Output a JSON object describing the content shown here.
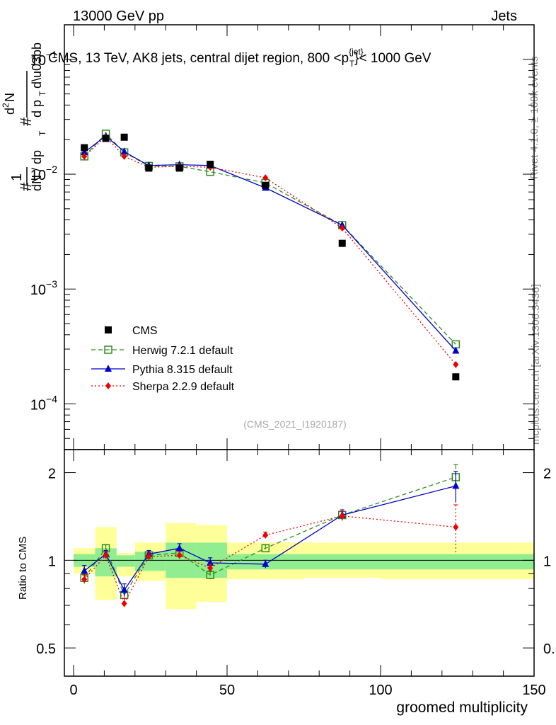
{
  "header": {
    "left": "13000 GeV pp",
    "right": "Jets"
  },
  "side": {
    "rivet": "Rivet 4.1.0, ≥ 100k events",
    "mcplots": "mcplots.cern.ch [arXiv:1306.3436]"
  },
  "chart_data": {
    "type": "line",
    "title": "CMS, 13 TeV, AK8 jets, central dijet region, 800 <p_T^{jet}< 1000 GeV",
    "title_parts": {
      "prefix": "CMS, 13 TeV, AK8 jets, central dijet region, 800 <p",
      "sub": "T",
      "sup": "{jet}",
      "suffix": "}< 1000 GeV"
    },
    "analysis_tag": "(CMS_2021_I1920187)",
    "xlabel": "groomed multiplicity",
    "ylabel_main": "1/dN/dp_T  d²N/dp_T dλ",
    "ylabel_ratio": "Ratio to CMS",
    "xlim": [
      -3,
      150
    ],
    "ylim_main": [
      4e-05,
      0.2
    ],
    "ylim_ratio": [
      0.4,
      2.4
    ],
    "x_ticks": [
      0,
      50,
      100,
      150
    ],
    "y_ticks_main": [
      {
        "value": 0.0001,
        "base": "10",
        "exp": "−4"
      },
      {
        "value": 0.001,
        "base": "10",
        "exp": "−3"
      },
      {
        "value": 0.01,
        "base": "10",
        "exp": "−2"
      },
      {
        "value": 0.1,
        "base": "10",
        "exp": "−1"
      }
    ],
    "y_ticks_ratio": [
      {
        "value": 0.5,
        "label": "0.5"
      },
      {
        "value": 1,
        "label": "1"
      },
      {
        "value": 2,
        "label": "2"
      }
    ],
    "x": [
      3.5,
      10.5,
      16.5,
      24.5,
      34.5,
      44.5,
      62.5,
      87.5,
      124.5
    ],
    "bin_edges": [
      0,
      7,
      14,
      20,
      30,
      40,
      50,
      75,
      100,
      150
    ],
    "data": {
      "name": "CMS",
      "values": [
        0.017,
        0.0205,
        0.021,
        0.0113,
        0.0113,
        0.0122,
        0.008,
        0.0025,
        0.000172
      ]
    },
    "series": [
      {
        "name": "Herwig 7.2.1 default",
        "color": "#2e8b1e",
        "values": [
          0.0143,
          0.0225,
          0.0155,
          0.0118,
          0.0117,
          0.0105,
          0.0084,
          0.0036,
          0.00033
        ],
        "ratio": [
          0.87,
          1.1,
          0.76,
          1.04,
          1.06,
          0.89,
          1.1,
          1.43,
          1.93
        ],
        "ratio_err": [
          0.03,
          0.03,
          0.03,
          0.03,
          0.03,
          0.03,
          0.03,
          0.06,
          0.2
        ]
      },
      {
        "name": "Pythia 8.315 default",
        "color": "#0000cc",
        "values": [
          0.0155,
          0.0215,
          0.0157,
          0.0119,
          0.0121,
          0.0119,
          0.0076,
          0.0036,
          0.00029
        ],
        "ratio": [
          0.92,
          1.05,
          0.79,
          1.05,
          1.1,
          0.98,
          0.97,
          1.43,
          1.8
        ],
        "ratio_err": [
          0.04,
          0.03,
          0.04,
          0.03,
          0.04,
          0.04,
          0.03,
          0.06,
          0.22
        ]
      },
      {
        "name": "Sherpa 2.2.9 default",
        "color": "#ee0000",
        "values": [
          0.0143,
          0.0212,
          0.0143,
          0.0115,
          0.0117,
          0.0115,
          0.0093,
          0.0034,
          0.00022
        ],
        "ratio": [
          0.86,
          1.04,
          0.71,
          1.03,
          1.04,
          0.94,
          1.22,
          1.42,
          1.3
        ],
        "ratio_err": [
          0.03,
          0.03,
          0.03,
          0.03,
          0.03,
          0.03,
          0.03,
          0.05,
          0.25
        ]
      }
    ],
    "band_green": [
      [
        0.95,
        1.05
      ],
      [
        0.88,
        1.1
      ],
      [
        0.95,
        1.04
      ],
      [
        0.92,
        1.07
      ],
      [
        0.87,
        1.15
      ],
      [
        0.87,
        1.15
      ],
      [
        0.93,
        1.05
      ],
      [
        0.93,
        1.05
      ],
      [
        0.93,
        1.05
      ]
    ],
    "band_yellow": [
      [
        0.9,
        1.1
      ],
      [
        0.73,
        1.3
      ],
      [
        0.88,
        1.06
      ],
      [
        0.85,
        1.15
      ],
      [
        0.68,
        1.34
      ],
      [
        0.72,
        1.32
      ],
      [
        0.86,
        1.15
      ],
      [
        0.87,
        1.15
      ],
      [
        0.86,
        1.15
      ]
    ]
  }
}
